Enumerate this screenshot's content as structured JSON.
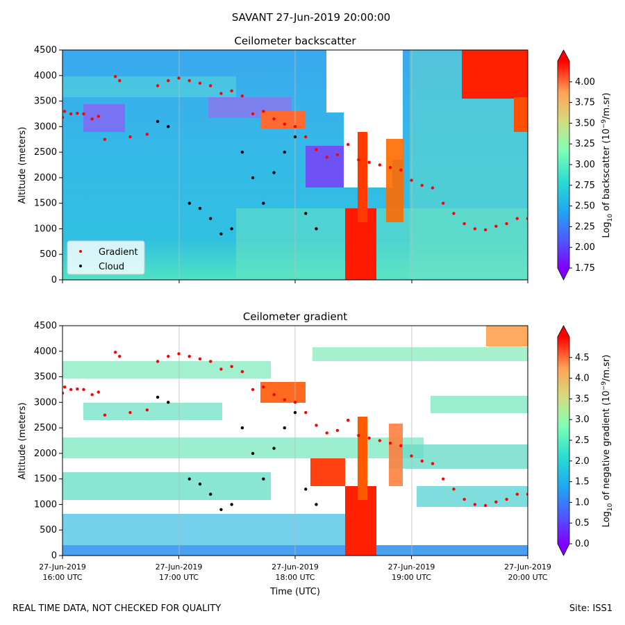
{
  "figure": {
    "suptitle": "SAVANT 27-Jun-2019 20:00:00",
    "footer_left": "REAL TIME DATA, NOT CHECKED FOR QUALITY",
    "footer_right": "Site: ISS1"
  },
  "chart_data": [
    {
      "type": "heatmap",
      "title": "Ceilometer backscatter",
      "ylabel": "Altitude (meters)",
      "xlabel": "",
      "ylim": [
        0,
        4500
      ],
      "yticks": [
        0,
        500,
        1000,
        1500,
        2000,
        2500,
        3000,
        3500,
        4000,
        4500
      ],
      "grid": "vertical",
      "colormap": "rainbow",
      "colorbar": {
        "label": "Log10 of backscatter (10^-9/m.sr)",
        "label_main": "Log",
        "label_sub": "10",
        "label_mid": " of backscatter (10",
        "label_sup": "−9",
        "label_end": "/m.sr)",
        "range": [
          1.75,
          4.25
        ],
        "ticks": [
          "1.75",
          "2.00",
          "2.25",
          "2.50",
          "2.75",
          "3.00",
          "3.25",
          "3.50",
          "3.75",
          "4.00"
        ],
        "extend": "both"
      },
      "legend": {
        "placement": "lower-left",
        "entries": [
          {
            "label": "Gradient",
            "color": "#ff0000"
          },
          {
            "label": "Cloud",
            "color": "#000000"
          }
        ]
      },
      "series": [
        {
          "name": "Gradient",
          "color": "#ff0000",
          "points": [
            [
              0.0,
              3180
            ],
            [
              0.05,
              3300
            ],
            [
              0.2,
              3250
            ],
            [
              0.35,
              3260
            ],
            [
              0.5,
              3250
            ],
            [
              0.7,
              3150
            ],
            [
              0.85,
              3200
            ],
            [
              1.0,
              2750
            ],
            [
              1.25,
              3980
            ],
            [
              1.35,
              3900
            ],
            [
              1.6,
              2800
            ],
            [
              2.0,
              2850
            ],
            [
              2.25,
              3800
            ],
            [
              2.5,
              3900
            ],
            [
              2.75,
              3950
            ],
            [
              3.0,
              3900
            ],
            [
              3.25,
              3850
            ],
            [
              3.5,
              3800
            ],
            [
              3.75,
              3650
            ],
            [
              4.0,
              3700
            ],
            [
              4.25,
              3600
            ],
            [
              4.5,
              3250
            ],
            [
              4.75,
              3300
            ],
            [
              5.0,
              3150
            ],
            [
              5.25,
              3050
            ],
            [
              5.5,
              3000
            ],
            [
              5.75,
              2800
            ],
            [
              6.0,
              2550
            ],
            [
              6.25,
              2400
            ],
            [
              6.5,
              2450
            ],
            [
              6.75,
              2650
            ],
            [
              7.0,
              2350
            ],
            [
              7.25,
              2300
            ],
            [
              7.5,
              2250
            ],
            [
              7.75,
              2200
            ],
            [
              8.0,
              2150
            ],
            [
              8.25,
              1950
            ],
            [
              8.5,
              1850
            ],
            [
              8.75,
              1800
            ],
            [
              9.0,
              1500
            ],
            [
              9.25,
              1300
            ],
            [
              9.5,
              1100
            ],
            [
              9.75,
              1000
            ],
            [
              10.0,
              980
            ],
            [
              10.25,
              1050
            ],
            [
              10.5,
              1100
            ],
            [
              10.75,
              1200
            ],
            [
              11.0,
              1200
            ]
          ]
        },
        {
          "name": "Cloud",
          "color": "#000000",
          "points": [
            [
              2.25,
              3100
            ],
            [
              2.5,
              3000
            ],
            [
              3.0,
              1500
            ],
            [
              3.25,
              1400
            ],
            [
              3.5,
              1200
            ],
            [
              3.75,
              900
            ],
            [
              4.0,
              1000
            ],
            [
              4.25,
              2500
            ],
            [
              4.5,
              2000
            ],
            [
              4.75,
              1500
            ],
            [
              5.0,
              2100
            ],
            [
              5.25,
              2500
            ],
            [
              5.5,
              2800
            ],
            [
              5.75,
              1300
            ],
            [
              6.0,
              1000
            ]
          ]
        }
      ]
    },
    {
      "type": "heatmap",
      "title": "Ceilometer gradient",
      "ylabel": "Altitude (meters)",
      "xlabel": "Time (UTC)",
      "ylim": [
        0,
        4500
      ],
      "yticks": [
        0,
        500,
        1000,
        1500,
        2000,
        2500,
        3000,
        3500,
        4000,
        4500
      ],
      "xticks": [
        {
          "line1": "27-Jun-2019",
          "line2": "16:00 UTC"
        },
        {
          "line1": "27-Jun-2019",
          "line2": "17:00 UTC"
        },
        {
          "line1": "27-Jun-2019",
          "line2": "18:00 UTC"
        },
        {
          "line1": "27-Jun-2019",
          "line2": "19:00 UTC"
        },
        {
          "line1": "27-Jun-2019",
          "line2": "20:00 UTC"
        }
      ],
      "grid": "vertical",
      "colormap": "rainbow",
      "colorbar": {
        "label": "Log10 of negative gradient (10^-9/m.sr)",
        "label_main": "Log",
        "label_sub": "10",
        "label_mid": " of negative gradient (10",
        "label_sup": "−9",
        "label_end": "/m.sr)",
        "range": [
          0,
          5
        ],
        "ticks": [
          "0.0",
          "0.5",
          "1.0",
          "1.5",
          "2.0",
          "2.5",
          "3.0",
          "3.5",
          "4.0",
          "4.5"
        ],
        "extend": "both"
      }
    }
  ],
  "colors": {
    "gradient_marker": "#ff0000",
    "cloud_marker": "#000000",
    "base_field": "#40c8e0"
  }
}
